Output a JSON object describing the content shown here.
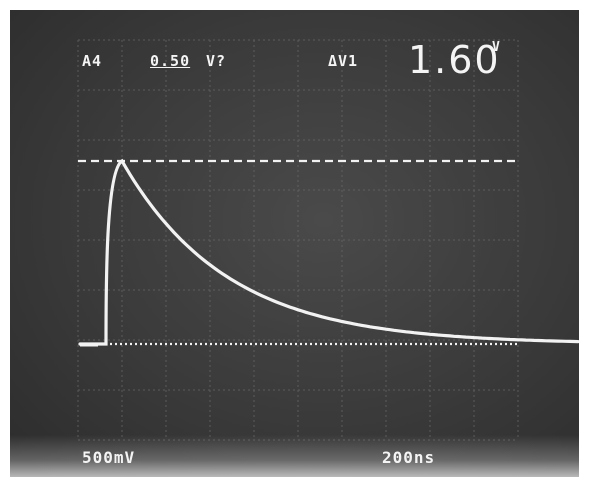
{
  "readouts": {
    "channel": "A4",
    "scale_factor": "0.50",
    "mode": "V?",
    "delta_label": "ΔV1",
    "delta_value": "1.60",
    "delta_unit": "V",
    "volts_per_div": "500mV",
    "time_per_div": "200ns"
  },
  "colors": {
    "screen": "#3a3a3a",
    "trace": "#f2f2f2",
    "graticule": "#6a6a6a",
    "text": "#f4f4f4"
  }
}
